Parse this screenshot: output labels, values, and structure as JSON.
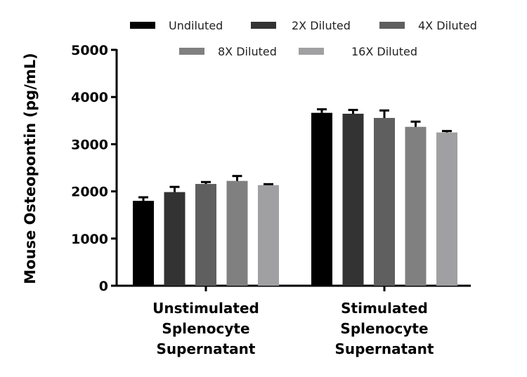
{
  "chart_data": {
    "type": "bar",
    "title": "",
    "xlabel": "",
    "ylabel": "Mouse Osteopontin (pg/mL)",
    "ylim": [
      0,
      5000
    ],
    "yticks": [
      "0",
      "1000",
      "2000",
      "3000",
      "4000",
      "5000"
    ],
    "categories": [
      [
        "Unstimulated",
        "Splenocyte",
        "Supernatant"
      ],
      [
        "Stimulated",
        "Splenocyte",
        "Supernatant"
      ]
    ],
    "legend_position": "top",
    "series": [
      {
        "name": "Undiluted",
        "color": "#000000",
        "values": [
          1800,
          3665
        ],
        "error": [
          75,
          75
        ]
      },
      {
        "name": "2X Diluted",
        "color": "#333333",
        "values": [
          1985,
          3646
        ],
        "error": [
          110,
          80
        ]
      },
      {
        "name": "4X Diluted",
        "color": "#5f5f5f",
        "values": [
          2158,
          3557
        ],
        "error": [
          40,
          158
        ]
      },
      {
        "name": "8X Diluted",
        "color": "#808080",
        "values": [
          2222,
          3368
        ],
        "error": [
          104,
          110
        ]
      },
      {
        "name": "16X Diluted",
        "color": "#a0a0a2",
        "values": [
          2133,
          3249
        ],
        "error": [
          20,
          30
        ]
      }
    ]
  }
}
